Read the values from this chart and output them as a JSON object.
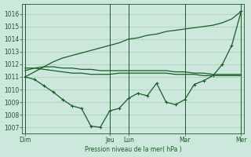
{
  "bg_color": "#cce8dc",
  "grid_color": "#aaccb8",
  "line_color": "#1a5c28",
  "xlabel": "Pression niveau de la mer( hPa )",
  "ylim": [
    1006.5,
    1016.8
  ],
  "yticks": [
    1007,
    1008,
    1009,
    1010,
    1011,
    1012,
    1013,
    1014,
    1015,
    1016
  ],
  "x_ticks_labels": [
    "Dim",
    "Jeu",
    "Lun",
    "Mar",
    "Mer"
  ],
  "x_ticks_pos": [
    0,
    9,
    11,
    17,
    23
  ],
  "n_points": 24,
  "series_main": [
    1011.0,
    1010.8,
    1010.3,
    1009.8,
    1009.2,
    1008.7,
    1008.5,
    1007.1,
    1007.0,
    1008.3,
    1008.5,
    1009.3,
    1009.7,
    1009.5,
    1010.5,
    1009.0,
    1008.8,
    1009.2,
    1010.4,
    1010.7,
    1011.1,
    1012.0,
    1013.5,
    1016.2
  ],
  "series_flat1": [
    1011.7,
    1011.7,
    1011.6,
    1011.5,
    1011.4,
    1011.3,
    1011.3,
    1011.2,
    1011.2,
    1011.2,
    1011.3,
    1011.3,
    1011.3,
    1011.3,
    1011.3,
    1011.3,
    1011.2,
    1011.2,
    1011.2,
    1011.1,
    1011.1,
    1011.1,
    1011.1,
    1011.1
  ],
  "series_flat2": [
    1011.5,
    1011.7,
    1011.8,
    1011.8,
    1011.7,
    1011.7,
    1011.6,
    1011.6,
    1011.5,
    1011.5,
    1011.5,
    1011.5,
    1011.5,
    1011.5,
    1011.5,
    1011.5,
    1011.4,
    1011.4,
    1011.3,
    1011.3,
    1011.2,
    1011.2,
    1011.2,
    1011.2
  ],
  "series_diag": [
    1011.0,
    1011.4,
    1011.8,
    1012.2,
    1012.5,
    1012.7,
    1012.9,
    1013.1,
    1013.3,
    1013.5,
    1013.7,
    1014.0,
    1014.1,
    1014.3,
    1014.4,
    1014.6,
    1014.7,
    1014.8,
    1014.9,
    1015.0,
    1015.1,
    1015.3,
    1015.6,
    1016.2
  ]
}
